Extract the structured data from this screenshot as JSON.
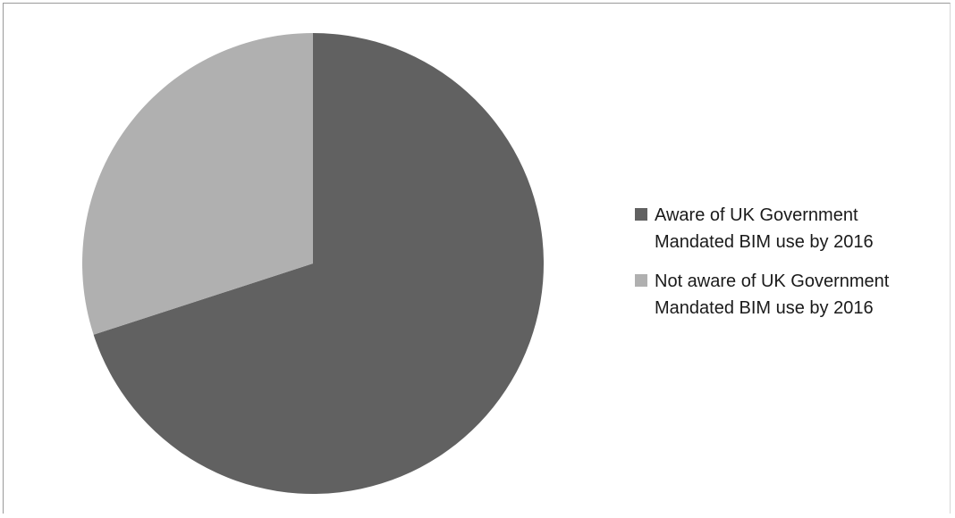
{
  "chart_data": {
    "type": "pie",
    "title": "",
    "start_angle_deg": 0,
    "direction": "clockwise",
    "legend_position": "right",
    "slices": [
      {
        "label": "Aware of UK Government\nMandated BIM use by 2016",
        "value": 70,
        "color": "#616161"
      },
      {
        "label": "Not aware of UK Government\nMandated BIM use by 2016",
        "value": 30,
        "color": "#b0b0b0"
      }
    ]
  }
}
